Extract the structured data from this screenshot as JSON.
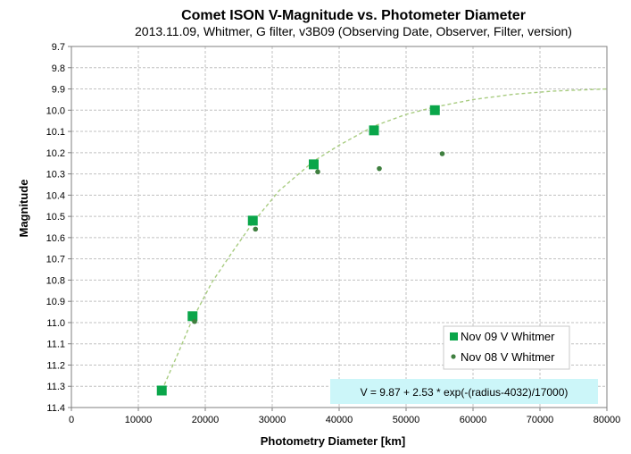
{
  "chart_data": {
    "type": "scatter",
    "title": "Comet ISON V-Magnitude  vs. Photometer Diameter",
    "subtitle": "2013.11.09,  Whitmer, G filter,  v3B09 (Observing Date, Observer, Filter, version)",
    "xlabel": "Photometry Diameter  [km]",
    "ylabel": "Magnitude",
    "xlim": [
      0,
      80000
    ],
    "ylim": [
      9.7,
      11.4
    ],
    "y_inverted": true,
    "grid": true,
    "legend_position": "bottom-right",
    "x_ticks": [
      {
        "value": 0,
        "label": "0"
      },
      {
        "value": 10000,
        "label": "10000"
      },
      {
        "value": 20000,
        "label": "20000"
      },
      {
        "value": 30000,
        "label": "30000"
      },
      {
        "value": 40000,
        "label": "40000"
      },
      {
        "value": 50000,
        "label": "50000"
      },
      {
        "value": 60000,
        "label": "60000"
      },
      {
        "value": 70000,
        "label": "70000"
      },
      {
        "value": 80000,
        "label": "80000"
      }
    ],
    "y_ticks": [
      {
        "value": 9.7,
        "label": "9.7"
      },
      {
        "value": 9.8,
        "label": "9.8"
      },
      {
        "value": 9.9,
        "label": "9.9"
      },
      {
        "value": 10.0,
        "label": "10.0"
      },
      {
        "value": 10.1,
        "label": "10.1"
      },
      {
        "value": 10.2,
        "label": "10.2"
      },
      {
        "value": 10.3,
        "label": "10.3"
      },
      {
        "value": 10.4,
        "label": "10.4"
      },
      {
        "value": 10.5,
        "label": "10.5"
      },
      {
        "value": 10.6,
        "label": "10.6"
      },
      {
        "value": 10.7,
        "label": "10.7"
      },
      {
        "value": 10.8,
        "label": "10.8"
      },
      {
        "value": 10.9,
        "label": "10.9"
      },
      {
        "value": 11.0,
        "label": "11.0"
      },
      {
        "value": 11.1,
        "label": "11.1"
      },
      {
        "value": 11.2,
        "label": "11.2"
      },
      {
        "value": 11.3,
        "label": "11.3"
      },
      {
        "value": 11.4,
        "label": "11.4"
      }
    ],
    "series": [
      {
        "name": "Nov 09 V Whitmer",
        "marker": "square",
        "color": "#0aa64a",
        "points": [
          {
            "x": 13500,
            "y": 11.32
          },
          {
            "x": 18100,
            "y": 10.97
          },
          {
            "x": 27100,
            "y": 10.52
          },
          {
            "x": 36200,
            "y": 10.255
          },
          {
            "x": 45200,
            "y": 10.095
          },
          {
            "x": 54300,
            "y": 10.0
          }
        ]
      },
      {
        "name": "Nov 08 V Whitmer",
        "marker": "circle",
        "color": "#3f7f3f",
        "points": [
          {
            "x": 18400,
            "y": 10.995
          },
          {
            "x": 27500,
            "y": 10.56
          },
          {
            "x": 36800,
            "y": 10.29
          },
          {
            "x": 46000,
            "y": 10.275
          },
          {
            "x": 55400,
            "y": 10.205
          }
        ]
      }
    ],
    "fit": {
      "label": "V = 9.87 + 2.53 * exp(-(radius-4032)/17000)",
      "color": "#a8cc80",
      "points": [
        {
          "x": 13500,
          "y": 11.32
        },
        {
          "x": 16000,
          "y": 11.14
        },
        {
          "x": 18000,
          "y": 10.99
        },
        {
          "x": 21000,
          "y": 10.81
        },
        {
          "x": 24000,
          "y": 10.67
        },
        {
          "x": 27100,
          "y": 10.53
        },
        {
          "x": 31000,
          "y": 10.38
        },
        {
          "x": 36200,
          "y": 10.24
        },
        {
          "x": 40000,
          "y": 10.165
        },
        {
          "x": 45200,
          "y": 10.075
        },
        {
          "x": 50000,
          "y": 10.02
        },
        {
          "x": 54300,
          "y": 9.985
        },
        {
          "x": 60000,
          "y": 9.95
        },
        {
          "x": 66000,
          "y": 9.925
        },
        {
          "x": 72000,
          "y": 9.91
        },
        {
          "x": 80000,
          "y": 9.9
        }
      ]
    },
    "colors": {
      "grid": "#c0c0c0",
      "annotation_background": "#ccf6f9"
    }
  }
}
